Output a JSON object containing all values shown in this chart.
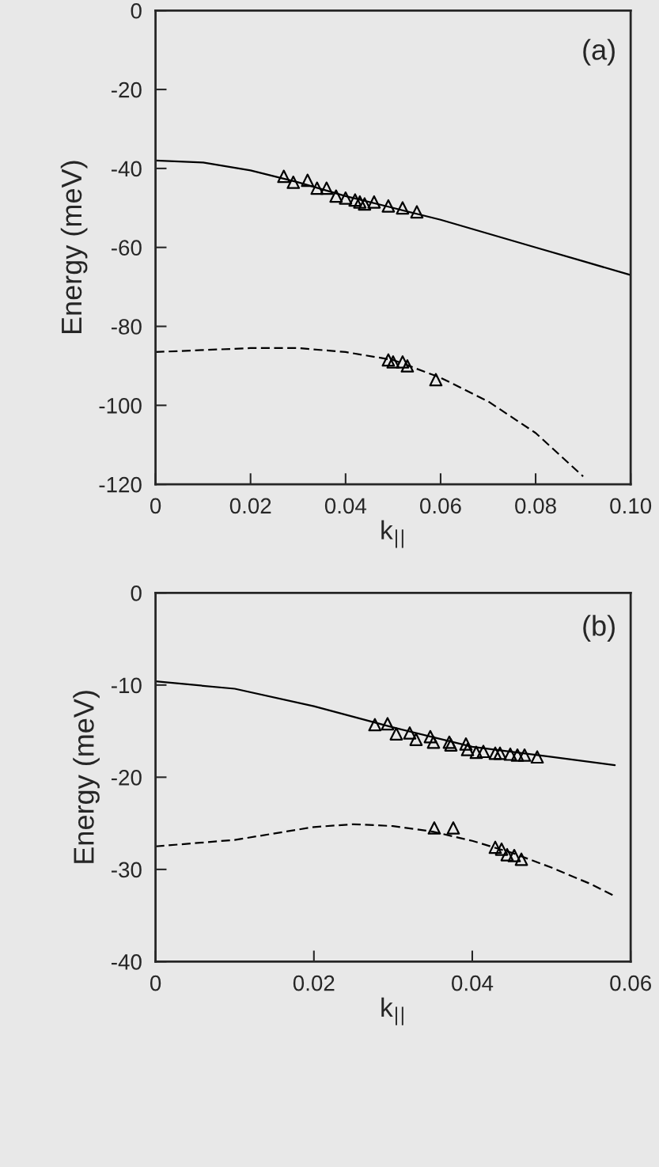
{
  "chart_data": [
    {
      "type": "scatter",
      "xlabel": "k$_{||}$",
      "ylabel": "Energy (meV)",
      "annotations": [
        "(a)"
      ],
      "xlim": [
        0,
        0.1
      ],
      "ylim": [
        -120,
        0
      ],
      "xticks": [
        0,
        0.02,
        0.04,
        0.06,
        0.08,
        {
          "value": 0.1,
          "label": "0.10"
        }
      ],
      "yticks": [
        0,
        -20,
        -40,
        -60,
        -80,
        -100,
        -120
      ],
      "grid": false,
      "legend": false,
      "series": [
        {
          "type": "line",
          "line_style": "solid",
          "marker": "none",
          "color": "#000000",
          "x": [
            0,
            0.01,
            0.02,
            0.03,
            0.04,
            0.05,
            0.06,
            0.07,
            0.08,
            0.09,
            0.1
          ],
          "values": [
            -38,
            -38.5,
            -40.5,
            -43.5,
            -47,
            -50,
            -53,
            -56.5,
            -60,
            -63.5,
            -67
          ]
        },
        {
          "type": "line",
          "line_style": "dashed",
          "marker": "none",
          "color": "#000000",
          "x": [
            0,
            0.01,
            0.02,
            0.03,
            0.04,
            0.05,
            0.06,
            0.07,
            0.08,
            0.09
          ],
          "values": [
            -86.5,
            -86,
            -85.5,
            -85.5,
            -86.5,
            -88.5,
            -93,
            -99,
            -107,
            -118
          ]
        },
        {
          "marker": "triangle",
          "color": "#000000",
          "x": [
            0.027,
            0.029,
            0.032,
            0.034,
            0.036,
            0.038,
            0.04,
            0.042,
            0.043,
            0.044,
            0.046,
            0.049,
            0.052,
            0.055
          ],
          "values": [
            -42,
            -43.5,
            -43,
            -45,
            -45,
            -47,
            -47.5,
            -48,
            -48.5,
            -49,
            -48.5,
            -49.5,
            -50,
            -51
          ]
        },
        {
          "marker": "triangle",
          "color": "#000000",
          "x": [
            0.049,
            0.05,
            0.052,
            0.053,
            0.059
          ],
          "values": [
            -88.5,
            -89,
            -89,
            -90,
            -93.5
          ]
        }
      ]
    },
    {
      "type": "scatter",
      "xlabel": "k$_{||}$",
      "ylabel": "Energy (meV)",
      "annotations": [
        "(b)"
      ],
      "xlim": [
        0,
        0.06
      ],
      "ylim": [
        -40,
        0
      ],
      "xticks": [
        0,
        0.02,
        0.04,
        0.06
      ],
      "yticks": [
        0,
        -10,
        -20,
        -30,
        -40
      ],
      "grid": false,
      "legend": false,
      "series": [
        {
          "type": "line",
          "line_style": "solid",
          "marker": "none",
          "color": "#000000",
          "x": [
            0,
            0.01,
            0.02,
            0.03,
            0.04,
            0.05,
            0.058
          ],
          "values": [
            -9.6,
            -10.4,
            -12.3,
            -14.6,
            -16.7,
            -17.8,
            -18.7
          ]
        },
        {
          "type": "line",
          "line_style": "dashed",
          "marker": "none",
          "color": "#000000",
          "x": [
            0,
            0.01,
            0.02,
            0.025,
            0.03,
            0.035,
            0.04,
            0.045,
            0.05,
            0.055,
            0.058
          ],
          "values": [
            -27.5,
            -26.8,
            -25.4,
            -25.1,
            -25.3,
            -25.9,
            -26.9,
            -28.2,
            -29.8,
            -31.6,
            -32.9
          ]
        },
        {
          "marker": "triangle",
          "color": "#000000",
          "x": [
            0.0277,
            0.0293,
            0.0304,
            0.0321,
            0.0329,
            0.0347,
            0.0351,
            0.0371,
            0.0373,
            0.0392,
            0.0394,
            0.0405,
            0.0414,
            0.0429,
            0.0435,
            0.0448,
            0.0457,
            0.0466,
            0.0482
          ],
          "values": [
            -14.3,
            -14.2,
            -15.3,
            -15.2,
            -15.9,
            -15.6,
            -16.2,
            -16.2,
            -16.5,
            -16.4,
            -17,
            -17.3,
            -17.2,
            -17.4,
            -17.4,
            -17.5,
            -17.6,
            -17.6,
            -17.8
          ]
        },
        {
          "marker": "triangle",
          "color": "#000000",
          "x": [
            0.0352,
            0.0376,
            0.0429,
            0.0437,
            0.0444,
            0.0453,
            0.0462
          ],
          "values": [
            -25.5,
            -25.5,
            -27.6,
            -27.8,
            -28.4,
            -28.5,
            -28.9
          ]
        }
      ]
    }
  ]
}
